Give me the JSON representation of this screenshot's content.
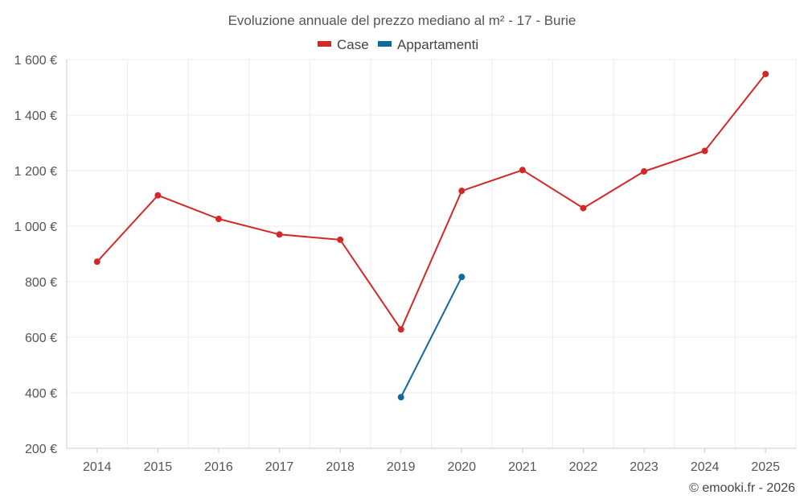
{
  "chart_data": {
    "type": "line",
    "title": "Evoluzione annuale del prezzo mediano al m² - 17 - Burie",
    "categories": [
      "2014",
      "2015",
      "2016",
      "2017",
      "2018",
      "2019",
      "2020",
      "2021",
      "2022",
      "2023",
      "2024",
      "2025"
    ],
    "series": [
      {
        "name": "Case",
        "color": "#d62728",
        "values": [
          872,
          1111,
          1026,
          970,
          951,
          628,
          1127,
          1202,
          1065,
          1197,
          1271,
          1548
        ]
      },
      {
        "name": "Appartamenti",
        "color": "#0f6a9e",
        "values": [
          null,
          null,
          null,
          null,
          null,
          384,
          817,
          null,
          null,
          null,
          null,
          null
        ]
      }
    ],
    "ylim": [
      200,
      1600
    ],
    "yticks": [
      {
        "value": 200,
        "label": "200 €"
      },
      {
        "value": 400,
        "label": "400 €"
      },
      {
        "value": 600,
        "label": "600 €"
      },
      {
        "value": 800,
        "label": "800 €"
      },
      {
        "value": 1000,
        "label": "1 000 €"
      },
      {
        "value": 1200,
        "label": "1 200 €"
      },
      {
        "value": 1400,
        "label": "1 400 €"
      },
      {
        "value": 1600,
        "label": "1 600 €"
      }
    ],
    "xlabel": "",
    "ylabel": "",
    "grid": true,
    "legend": "top-center"
  },
  "credit": "© emooki.fr - 2026"
}
